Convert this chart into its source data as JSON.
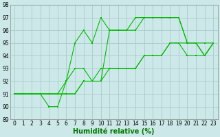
{
  "title": "",
  "xlabel": "Humidité relative (%)",
  "ylabel": "",
  "bg_color": "#cce8e8",
  "grid_color": "#aacccc",
  "line_color": "#00bb00",
  "xlim": [
    -0.5,
    23.5
  ],
  "ylim": [
    89,
    98
  ],
  "xticks": [
    0,
    1,
    2,
    3,
    4,
    5,
    6,
    7,
    8,
    9,
    10,
    11,
    12,
    13,
    14,
    15,
    16,
    17,
    18,
    19,
    20,
    21,
    22,
    23
  ],
  "yticks": [
    89,
    90,
    91,
    92,
    93,
    94,
    95,
    96,
    97,
    98
  ],
  "series": [
    [
      91,
      91,
      91,
      91,
      90,
      90,
      92,
      95,
      96,
      95,
      97,
      96,
      96,
      96,
      97,
      97,
      97,
      97,
      97,
      97,
      95,
      95,
      94,
      95
    ],
    [
      91,
      91,
      91,
      91,
      91,
      91,
      92,
      93,
      93,
      92,
      92,
      96,
      96,
      96,
      96,
      97,
      97,
      97,
      97,
      97,
      95,
      95,
      94,
      95
    ],
    [
      91,
      91,
      91,
      91,
      91,
      91,
      91,
      91,
      92,
      92,
      93,
      93,
      93,
      93,
      93,
      94,
      94,
      94,
      95,
      95,
      94,
      94,
      94,
      95
    ],
    [
      91,
      91,
      91,
      91,
      91,
      91,
      91,
      91,
      92,
      92,
      92,
      93,
      93,
      93,
      93,
      94,
      94,
      94,
      95,
      95,
      95,
      95,
      95,
      95
    ]
  ],
  "xlabel_fontsize": 7,
  "tick_fontsize": 5.5,
  "xlabel_color": "#007700"
}
